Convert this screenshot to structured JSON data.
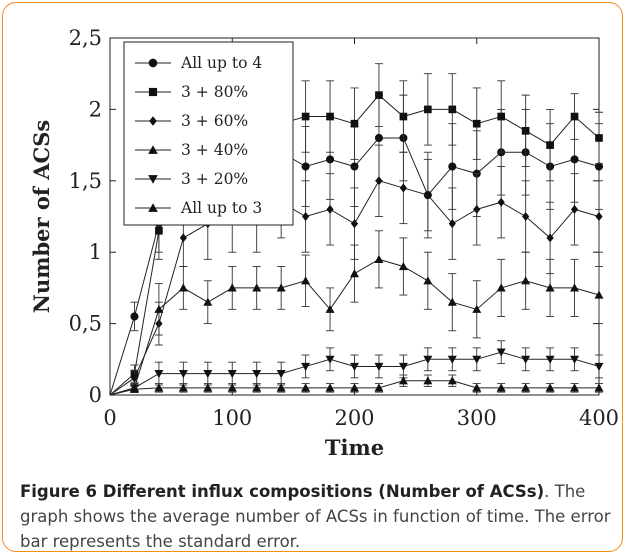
{
  "chart_data": {
    "type": "line",
    "xlabel": "Time",
    "ylabel": "Number of ACSs",
    "xlim": [
      0,
      400
    ],
    "ylim": [
      0,
      2.5
    ],
    "x_ticks": [
      "0",
      "100",
      "200",
      "300",
      "400"
    ],
    "y_ticks": [
      "0",
      "0,5",
      "1",
      "1,5",
      "2",
      "2,5"
    ],
    "error_bars": true,
    "legend_position": "top-left",
    "x": [
      0,
      20,
      40,
      60,
      80,
      100,
      120,
      140,
      160,
      180,
      200,
      220,
      240,
      260,
      280,
      300,
      320,
      340,
      360,
      380,
      400
    ],
    "series": [
      {
        "name": "All up to 4",
        "marker": "circle",
        "values": [
          0,
          0.55,
          1.2,
          1.55,
          1.6,
          1.6,
          1.65,
          1.7,
          1.6,
          1.65,
          1.6,
          1.8,
          1.8,
          1.4,
          1.6,
          1.55,
          1.7,
          1.7,
          1.6,
          1.65,
          1.6
        ],
        "errors": [
          0,
          0.1,
          0.2,
          0.25,
          0.25,
          0.25,
          0.25,
          0.25,
          0.28,
          0.28,
          0.28,
          0.3,
          0.3,
          0.3,
          0.3,
          0.3,
          0.3,
          0.3,
          0.3,
          0.3,
          0.3
        ]
      },
      {
        "name": "3 + 80%",
        "marker": "square",
        "values": [
          0,
          0.15,
          1.15,
          1.75,
          1.8,
          1.85,
          1.9,
          1.9,
          1.95,
          1.95,
          1.9,
          2.1,
          1.95,
          2.0,
          2.0,
          1.9,
          1.95,
          1.85,
          1.75,
          1.95,
          1.8
        ],
        "errors": [
          0,
          0.06,
          0.2,
          0.25,
          0.25,
          0.25,
          0.25,
          0.25,
          0.25,
          0.25,
          0.25,
          0.22,
          0.25,
          0.25,
          0.25,
          0.25,
          0.25,
          0.25,
          0.25,
          0.16,
          0.18
        ]
      },
      {
        "name": "3 + 60%",
        "marker": "diamond",
        "values": [
          0,
          0.12,
          0.5,
          1.1,
          1.2,
          1.25,
          1.25,
          1.35,
          1.25,
          1.3,
          1.2,
          1.5,
          1.45,
          1.4,
          1.2,
          1.3,
          1.35,
          1.25,
          1.1,
          1.3,
          1.25
        ],
        "errors": [
          0,
          0.05,
          0.15,
          0.2,
          0.25,
          0.25,
          0.25,
          0.25,
          0.25,
          0.25,
          0.25,
          0.25,
          0.25,
          0.25,
          0.25,
          0.25,
          0.25,
          0.25,
          0.25,
          0.25,
          0.25
        ]
      },
      {
        "name": "3 + 40%",
        "marker": "triangle-up",
        "values": [
          0,
          0.05,
          0.6,
          0.75,
          0.65,
          0.75,
          0.75,
          0.75,
          0.8,
          0.6,
          0.85,
          0.95,
          0.9,
          0.8,
          0.65,
          0.6,
          0.75,
          0.8,
          0.75,
          0.75,
          0.7
        ],
        "errors": [
          0,
          0.03,
          0.18,
          0.15,
          0.15,
          0.15,
          0.15,
          0.15,
          0.18,
          0.15,
          0.2,
          0.2,
          0.2,
          0.2,
          0.2,
          0.2,
          0.2,
          0.2,
          0.2,
          0.2,
          0.2
        ]
      },
      {
        "name": "3 + 20%",
        "marker": "triangle-down",
        "values": [
          0,
          0.05,
          0.15,
          0.15,
          0.15,
          0.15,
          0.15,
          0.15,
          0.2,
          0.25,
          0.2,
          0.2,
          0.2,
          0.25,
          0.25,
          0.25,
          0.3,
          0.25,
          0.25,
          0.25,
          0.2
        ],
        "errors": [
          0,
          0.03,
          0.08,
          0.08,
          0.08,
          0.08,
          0.08,
          0.08,
          0.08,
          0.08,
          0.08,
          0.08,
          0.08,
          0.08,
          0.08,
          0.08,
          0.08,
          0.08,
          0.08,
          0.08,
          0.08
        ]
      },
      {
        "name": "All up to 3",
        "marker": "triangle-up",
        "values": [
          0,
          0.04,
          0.05,
          0.05,
          0.05,
          0.05,
          0.05,
          0.05,
          0.05,
          0.05,
          0.05,
          0.05,
          0.1,
          0.1,
          0.1,
          0.05,
          0.05,
          0.05,
          0.05,
          0.05,
          0.05
        ],
        "errors": [
          0,
          0.02,
          0.03,
          0.03,
          0.03,
          0.03,
          0.03,
          0.03,
          0.03,
          0.03,
          0.03,
          0.03,
          0.04,
          0.04,
          0.04,
          0.03,
          0.03,
          0.03,
          0.03,
          0.03,
          0.03
        ]
      }
    ]
  },
  "caption": {
    "title": "Figure 6 Different influx compositions (Number of ACSs)",
    "text": ". The graph shows the average number of ACSs in function of time. The error bar represents the standard error."
  }
}
